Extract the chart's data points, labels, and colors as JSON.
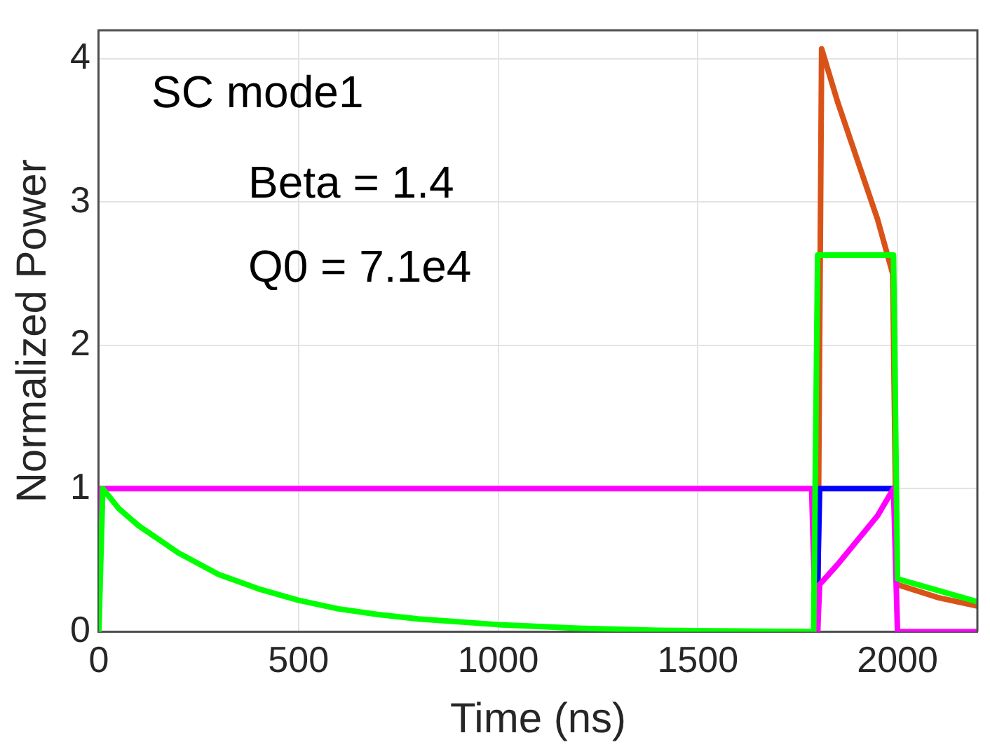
{
  "chart_data": {
    "type": "line",
    "xlabel": "Time (ns)",
    "ylabel": "Normalized Power",
    "annotations": [
      "SC mode1",
      "Beta = 1.4",
      "Q0 = 7.1e4"
    ],
    "xlim": [
      0,
      2200
    ],
    "xticks": [
      0,
      500,
      1000,
      1500,
      2000
    ],
    "ylim": [
      0,
      4.2
    ],
    "yticks": [
      0,
      1,
      2,
      3,
      4
    ],
    "grid": true,
    "legend": false,
    "marker": "none",
    "line_style": "solid",
    "series": [
      {
        "color": "#d95319",
        "x": [
          1800,
          1810,
          1850,
          1900,
          1950,
          1988,
          1998,
          2010,
          2100,
          2200
        ],
        "values": [
          0,
          4.07,
          3.7,
          3.29,
          2.88,
          2.5,
          0.33,
          0.32,
          0.24,
          0.18
        ]
      },
      {
        "color": "#0000ff",
        "x": [
          1795,
          1800,
          1805,
          1990
        ],
        "values": [
          0,
          0.33,
          1,
          1
        ]
      },
      {
        "color": "#ff00ff",
        "x": [
          0,
          5,
          1785,
          1795,
          1800,
          1805,
          1850,
          1900,
          1950,
          1990,
          2000,
          2200
        ],
        "values": [
          0,
          1,
          1,
          0,
          0,
          0.33,
          0.47,
          0.64,
          0.81,
          1,
          0,
          0
        ]
      },
      {
        "color": "#00ff00",
        "x": [
          0,
          10,
          50,
          100,
          200,
          300,
          400,
          500,
          600,
          700,
          800,
          1000,
          1200,
          1400,
          1600,
          1790,
          1800,
          1990,
          2000,
          2100,
          2200
        ],
        "values": [
          0,
          1,
          0.86,
          0.74,
          0.55,
          0.4,
          0.3,
          0.22,
          0.16,
          0.12,
          0.09,
          0.05,
          0.025,
          0.01,
          0.005,
          0,
          2.63,
          2.63,
          0.37,
          0.29,
          0.21
        ]
      }
    ]
  }
}
